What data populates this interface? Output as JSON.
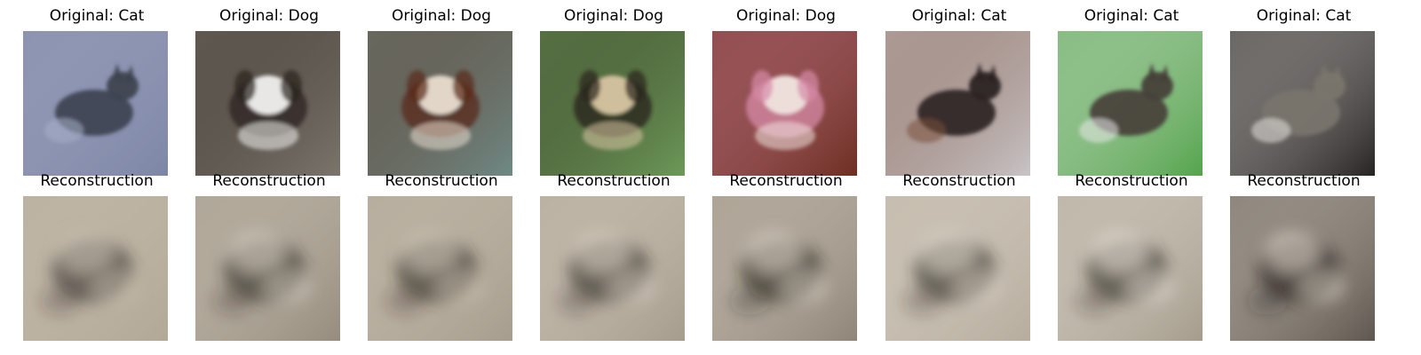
{
  "images": [
    {
      "title": "Original: Cat",
      "kind": "original",
      "subject": "cat",
      "bg": "#7e86a6",
      "accent": "#3e4350",
      "secondary": "#a8aec8"
    },
    {
      "title": "Original: Dog",
      "kind": "original",
      "subject": "dog",
      "bg": "#7b756c",
      "accent": "#f2f1ef",
      "secondary": "#2b241f"
    },
    {
      "title": "Original: Dog",
      "kind": "original",
      "subject": "dog",
      "bg": "#6f8a86",
      "accent": "#e9dfd2",
      "secondary": "#5a2a17"
    },
    {
      "title": "Original: Dog",
      "kind": "original",
      "subject": "dog",
      "bg": "#6d9a58",
      "accent": "#d9c7a2",
      "secondary": "#2a231b"
    },
    {
      "title": "Original: Dog",
      "kind": "original",
      "subject": "dog",
      "bg": "#6d2e21",
      "accent": "#f0e4de",
      "secondary": "#d58aa6"
    },
    {
      "title": "Original: Cat",
      "kind": "original",
      "subject": "cat",
      "bg": "#c8c4c6",
      "accent": "#2b2422",
      "secondary": "#7a4e3c"
    },
    {
      "title": "Original: Cat",
      "kind": "original",
      "subject": "cat",
      "bg": "#53a44b",
      "accent": "#46403a",
      "secondary": "#eaeaea"
    },
    {
      "title": "Original: Cat",
      "kind": "original",
      "subject": "cat",
      "bg": "#262322",
      "accent": "#7a756c",
      "secondary": "#e6e4df"
    },
    {
      "title": "Reconstruction",
      "kind": "reconstruction",
      "subject": "blob",
      "bg": "#b2a898",
      "accent": "#2d2924",
      "secondary": "#cfc6b6"
    },
    {
      "title": "Reconstruction",
      "kind": "reconstruction",
      "subject": "blob",
      "bg": "#958c7e",
      "accent": "#2c2620",
      "secondary": "#e0d8ca"
    },
    {
      "title": "Reconstruction",
      "kind": "reconstruction",
      "subject": "blob",
      "bg": "#a79d8e",
      "accent": "#2a241f",
      "secondary": "#d7cdbd"
    },
    {
      "title": "Reconstruction",
      "kind": "reconstruction",
      "subject": "blob",
      "bg": "#a69c8e",
      "accent": "#2a241f",
      "secondary": "#e3dacc"
    },
    {
      "title": "Reconstruction",
      "kind": "reconstruction",
      "subject": "blob",
      "bg": "#8f8578",
      "accent": "#1f1b18",
      "secondary": "#e5ddcf"
    },
    {
      "title": "Reconstruction",
      "kind": "reconstruction",
      "subject": "blob",
      "bg": "#b6ad9f",
      "accent": "#2a251f",
      "secondary": "#e4dccf"
    },
    {
      "title": "Reconstruction",
      "kind": "reconstruction",
      "subject": "blob",
      "bg": "#a59c8d",
      "accent": "#2c2620",
      "secondary": "#f0eadf"
    },
    {
      "title": "Reconstruction",
      "kind": "reconstruction",
      "subject": "blob",
      "bg": "#5e574f",
      "accent": "#1d1a17",
      "secondary": "#e7dfd2"
    }
  ]
}
